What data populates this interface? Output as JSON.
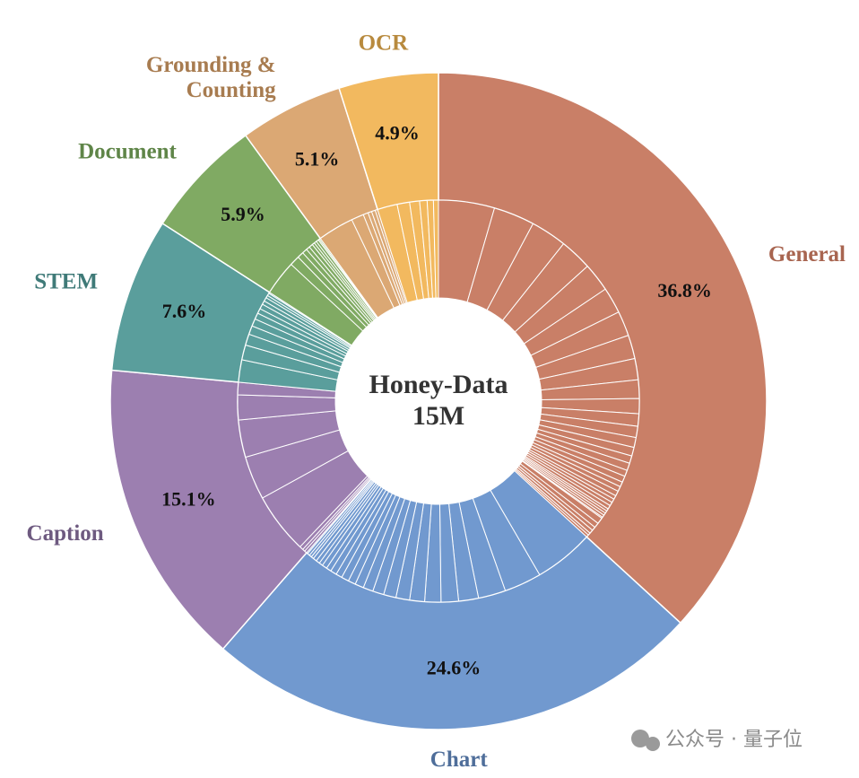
{
  "chart_data": {
    "type": "sunburst",
    "center_label": [
      "Honey-Data",
      "15M"
    ],
    "categories": [
      "General",
      "Chart",
      "Caption",
      "STEM",
      "Document",
      "Grounding &\nCounting",
      "OCR"
    ],
    "values": [
      36.8,
      24.6,
      15.1,
      7.6,
      5.9,
      5.1,
      4.9
    ],
    "value_labels": [
      "36.8%",
      "24.6%",
      "15.1%",
      "7.6%",
      "5.9%",
      "5.1%",
      "4.9%"
    ],
    "colors": [
      "#c97f67",
      "#7199cf",
      "#9c7fb0",
      "#5a9e9c",
      "#80aa63",
      "#dba874",
      "#f2b95f"
    ],
    "label_colors": [
      "#a86550",
      "#4f6e9a",
      "#6e5a80",
      "#3f7a78",
      "#5f8548",
      "#a87c50",
      "#b88a3e"
    ],
    "children": [
      [
        4.5,
        3.3,
        2.9,
        2.6,
        2.3,
        2.1,
        2.0,
        1.9,
        1.7,
        1.5,
        1.2,
        1.0,
        0.9,
        0.8,
        0.7,
        0.6,
        0.6,
        0.5,
        0.5,
        0.4,
        0.4,
        0.4,
        0.3,
        0.3,
        0.3,
        0.3,
        0.2,
        0.2,
        0.2,
        0.2,
        0.1,
        0.5,
        0.4,
        0.3,
        0.3,
        0.2,
        0.2
      ],
      [
        4.8,
        3.0,
        2.2,
        1.6,
        1.4,
        1.3,
        1.2,
        1.1,
        1.0,
        0.9,
        0.8,
        0.7,
        0.6,
        0.6,
        0.5,
        0.5,
        0.4,
        0.4,
        0.3,
        0.3,
        0.3,
        0.2,
        0.2,
        0.2,
        0.1
      ],
      [
        0.2,
        0.2,
        0.3,
        4.9,
        3.5,
        3.0,
        2.0,
        1.0
      ],
      [
        1.8,
        1.2,
        0.9,
        0.7,
        0.6,
        0.5,
        0.4,
        0.4,
        0.3,
        0.3,
        0.2,
        0.2,
        0.1
      ],
      [
        2.8,
        0.8,
        0.5,
        0.4,
        0.3,
        0.3,
        0.2,
        0.2,
        0.2,
        0.1,
        0.1
      ],
      [
        2.9,
        1.0,
        0.4,
        0.3,
        0.3,
        0.2
      ],
      [
        1.6,
        1.0,
        0.8,
        0.6,
        0.5,
        0.4
      ]
    ],
    "watermark": "公众号 · 量子位"
  }
}
